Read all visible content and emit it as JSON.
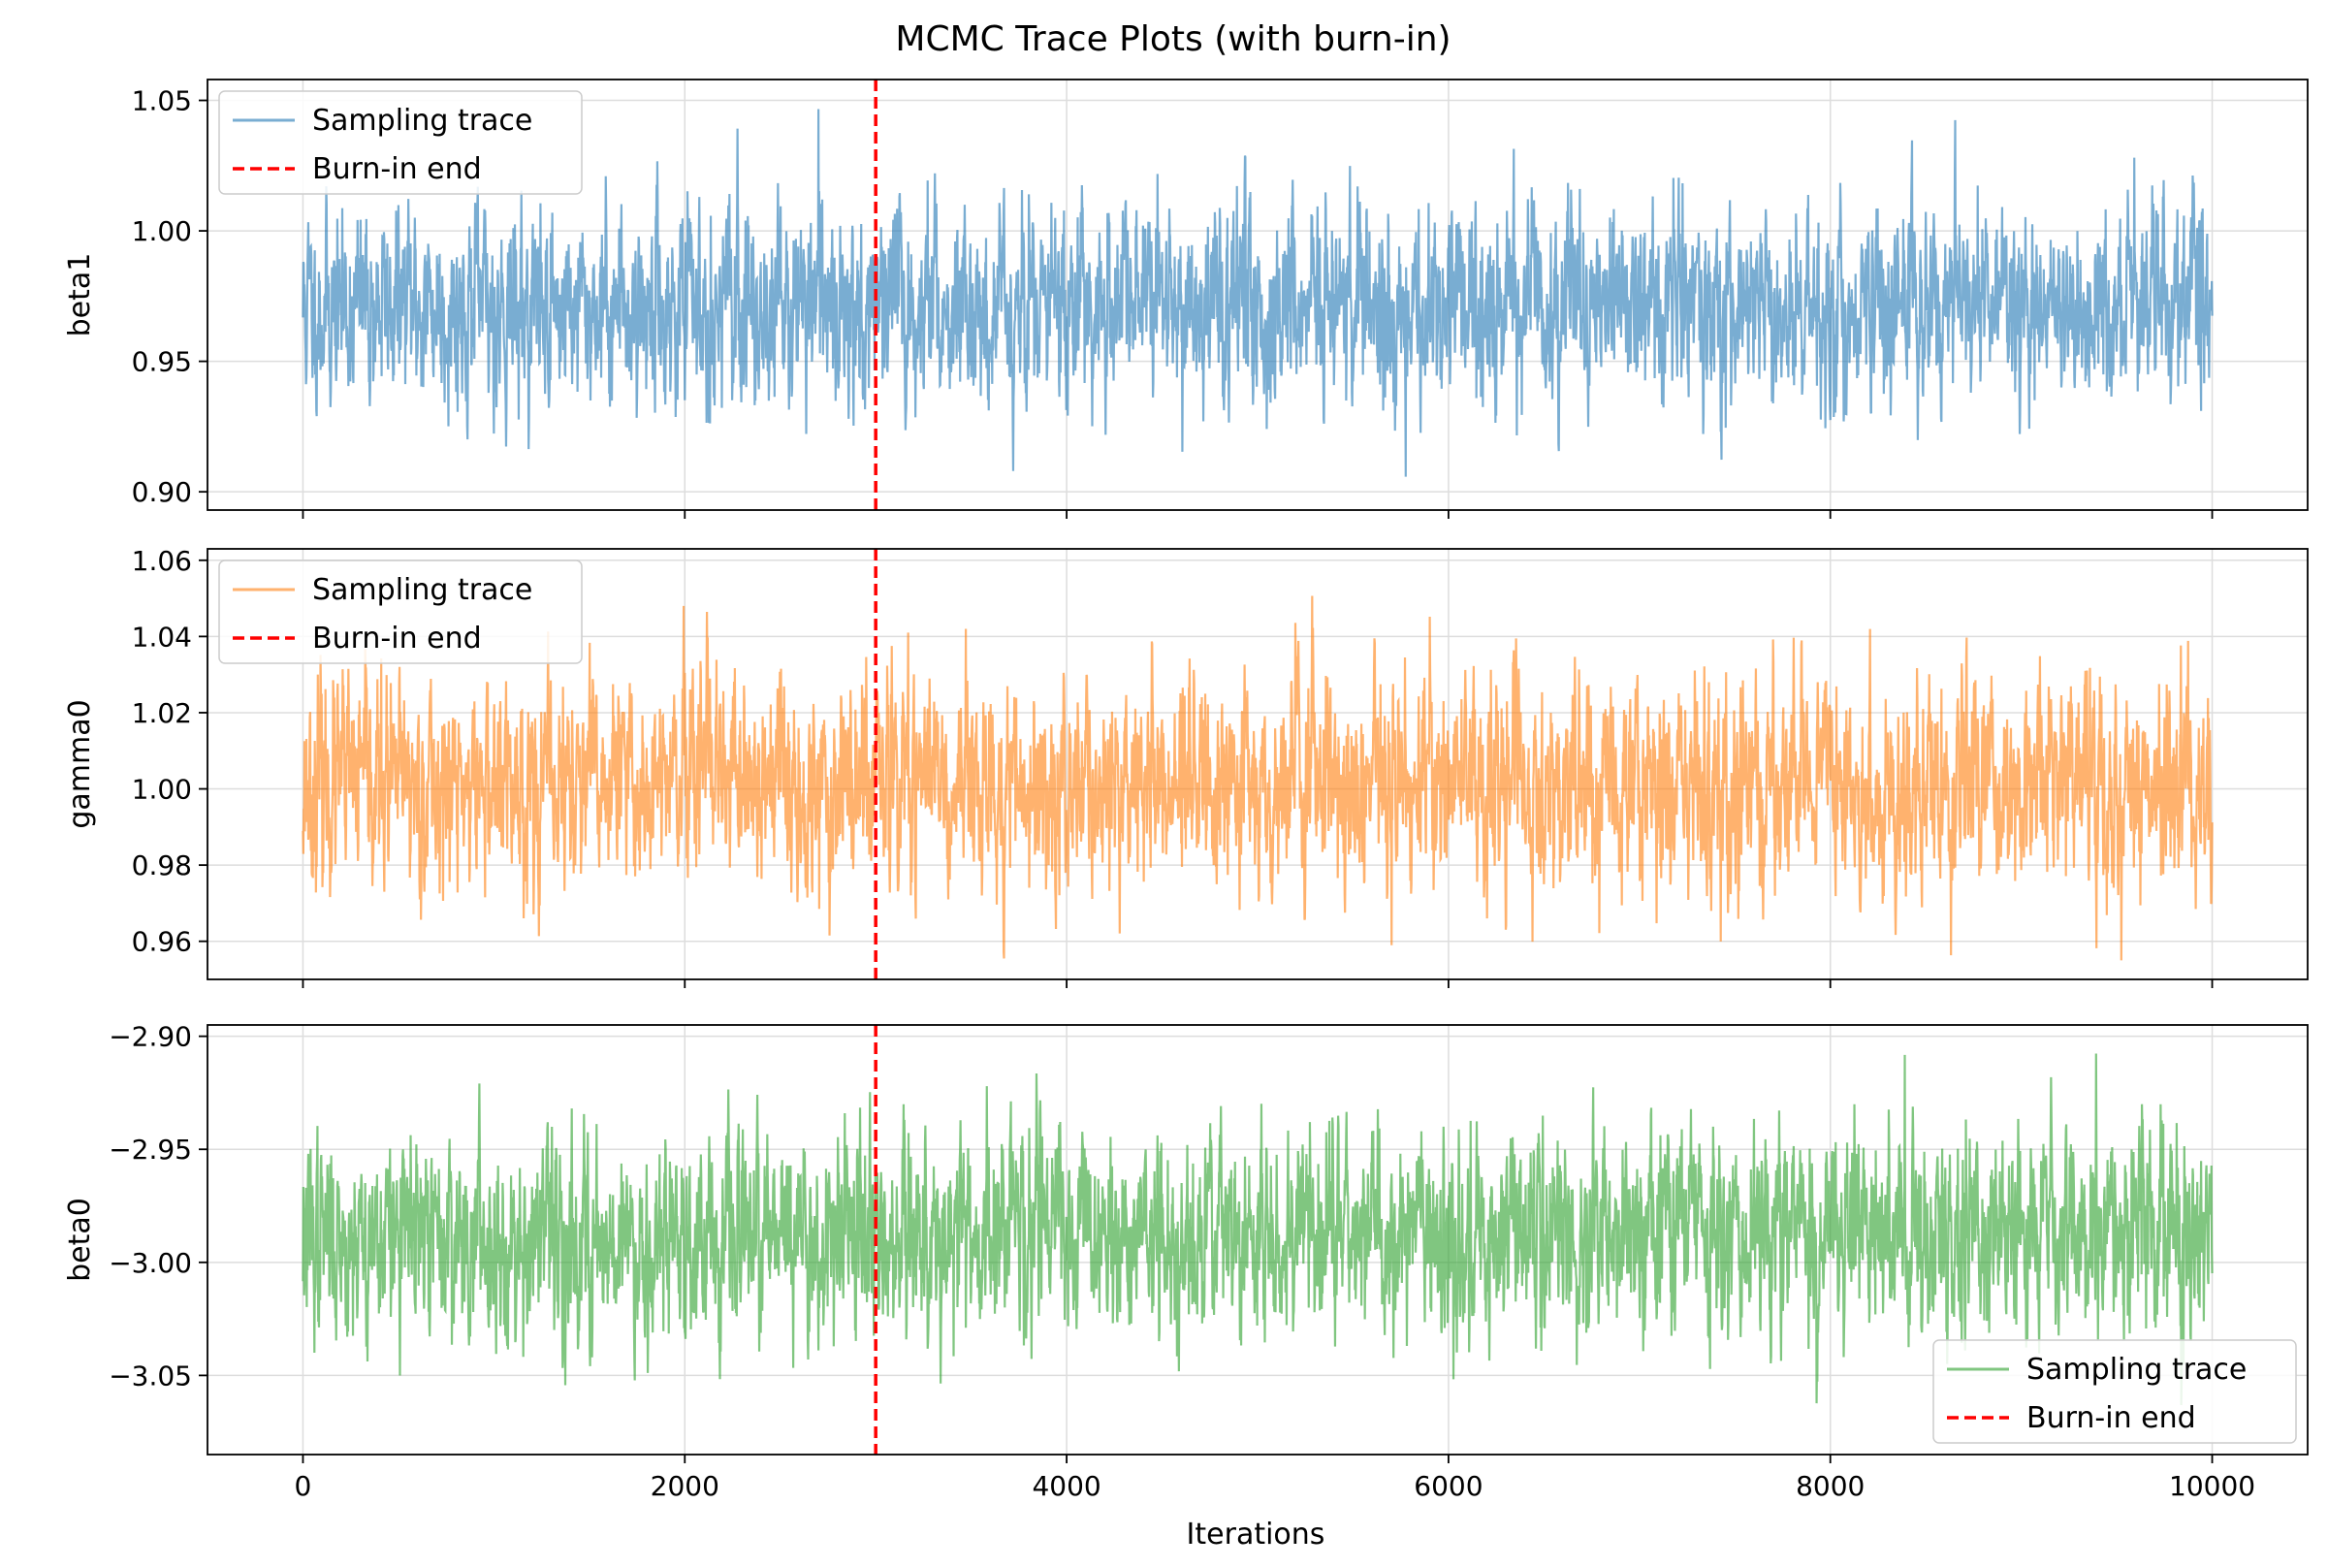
{
  "chart_data": {
    "type": "line",
    "title": "MCMC Trace Plots (with burn-in)",
    "xlabel": "Iterations",
    "xlim": [
      -500,
      10500
    ],
    "x_ticks": [
      0,
      2000,
      4000,
      6000,
      8000,
      10000
    ],
    "x_tick_labels": [
      "0",
      "2000",
      "4000",
      "6000",
      "8000",
      "10000"
    ],
    "burn_in_end": 3000,
    "n_iterations": 10000,
    "panels": [
      {
        "ylabel": "beta1",
        "ylim": [
          0.893,
          1.058
        ],
        "y_ticks": [
          0.9,
          0.95,
          1.0,
          1.05
        ],
        "y_tick_labels": [
          "0.90",
          "0.95",
          "1.00",
          "1.05"
        ],
        "trace_mean": 0.971,
        "trace_sd": 0.018,
        "trace_min": 0.902,
        "trace_max": 1.05,
        "color": "#1f77b4",
        "legend_position": "upper left",
        "legend": [
          "Sampling trace",
          "Burn-in end"
        ],
        "seed": 11
      },
      {
        "ylabel": "gamma0",
        "ylim": [
          0.95,
          1.063
        ],
        "y_ticks": [
          0.96,
          0.98,
          1.0,
          1.02,
          1.04,
          1.06
        ],
        "y_tick_labels": [
          "0.96",
          "0.98",
          "1.00",
          "1.02",
          "1.04",
          "1.06"
        ],
        "trace_mean": 1.001,
        "trace_sd": 0.013,
        "trace_min": 0.955,
        "trace_max": 1.058,
        "color": "#ff7f0e",
        "legend_position": "upper left",
        "legend": [
          "Sampling trace",
          "Burn-in end"
        ],
        "seed": 23
      },
      {
        "ylabel": "beta0",
        "ylim": [
          -3.085,
          -2.895
        ],
        "y_ticks": [
          -3.05,
          -3.0,
          -2.95,
          -2.9
        ],
        "y_tick_labels": [
          "−3.05",
          "−3.00",
          "−2.95",
          "−2.90"
        ],
        "trace_mean": -2.989,
        "trace_sd": 0.021,
        "trace_min": -3.078,
        "trace_max": -2.903,
        "color": "#2ca02c",
        "legend_position": "lower right",
        "legend": [
          "Sampling trace",
          "Burn-in end"
        ],
        "seed": 37
      }
    ],
    "colors": {
      "burn_in_line": "#ff0000",
      "grid": "#dddddd",
      "axes": "#000000"
    }
  }
}
